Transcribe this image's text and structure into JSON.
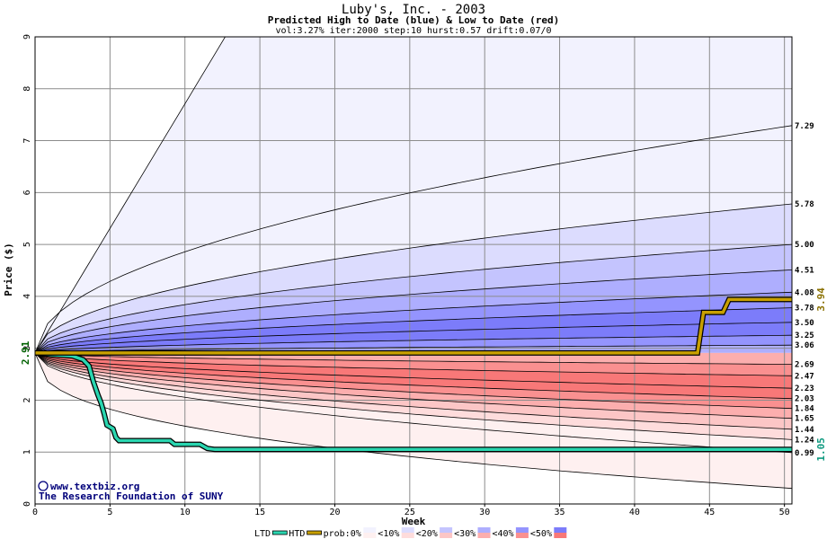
{
  "chart_data": {
    "type": "area",
    "title": "Luby's, Inc. - 2003",
    "subtitle": "Predicted High to Date (blue) &  Low to Date (red)",
    "params": "vol:3.27% iter:2000 step:10 hurst:0.57 drift:0.07/0",
    "xlabel": "Week",
    "ylabel": "Price ($)",
    "xlim": [
      0,
      50.5
    ],
    "ylim": [
      0,
      9
    ],
    "x_ticks": [
      0,
      5,
      10,
      15,
      20,
      25,
      30,
      35,
      40,
      45,
      50
    ],
    "y_ticks": [
      0,
      1,
      2,
      3,
      4,
      5,
      6,
      7,
      8,
      9
    ],
    "grid": true,
    "start_price": 2.91,
    "start_label": "2.91",
    "high_quantile_ends": [
      3.06,
      3.25,
      3.5,
      3.78,
      4.08,
      4.51,
      5.0,
      5.78,
      7.29
    ],
    "high_quantile_labels": [
      "3.06",
      "3.25",
      "3.50",
      "3.78",
      "4.08",
      "4.51",
      "5.00",
      "5.78",
      "7.29"
    ],
    "low_quantile_ends": [
      2.69,
      2.47,
      2.23,
      2.03,
      1.84,
      1.65,
      1.44,
      1.24,
      0.99
    ],
    "low_quantile_labels": [
      "2.69",
      "2.47",
      "2.23",
      "2.03",
      "1.84",
      "1.65",
      "1.44",
      "1.24",
      "0.99"
    ],
    "htd_series": {
      "name": "HTD",
      "points": [
        [
          0,
          2.91
        ],
        [
          44.2,
          2.91
        ],
        [
          44.6,
          3.69
        ],
        [
          45.9,
          3.69
        ],
        [
          46.3,
          3.94
        ],
        [
          50.5,
          3.94
        ]
      ],
      "end_label": "3.94",
      "color": "#c8a000"
    },
    "ltd_series": {
      "name": "LTD",
      "points": [
        [
          0,
          2.91
        ],
        [
          1,
          2.88
        ],
        [
          2.5,
          2.85
        ],
        [
          3.2,
          2.78
        ],
        [
          3.6,
          2.66
        ],
        [
          3.9,
          2.35
        ],
        [
          4.2,
          2.1
        ],
        [
          4.4,
          1.95
        ],
        [
          4.6,
          1.75
        ],
        [
          4.8,
          1.52
        ],
        [
          5.2,
          1.45
        ],
        [
          5.4,
          1.28
        ],
        [
          5.6,
          1.22
        ],
        [
          9,
          1.22
        ],
        [
          9.3,
          1.15
        ],
        [
          11,
          1.15
        ],
        [
          11.5,
          1.07
        ],
        [
          12,
          1.05
        ],
        [
          50.5,
          1.05
        ]
      ],
      "end_label": "1.05",
      "color": "#2ad6b0"
    },
    "legend": [
      "LTD",
      "HTD",
      "prob:0%",
      "<10%",
      "<20%",
      "<30%",
      "<40%",
      "<50%"
    ],
    "band_colors": {
      "blue": [
        "#f2f2fe",
        "#dcdcfe",
        "#c4c4fe",
        "#aeaefe",
        "#9494fe",
        "#7c7cfa"
      ],
      "red": [
        "#fef0f0",
        "#fedcdc",
        "#fcc6c6",
        "#fcaeae",
        "#fa9090",
        "#f87878"
      ]
    },
    "credits": [
      "www.textbiz.org",
      "The Research Foundation of SUNY"
    ]
  }
}
